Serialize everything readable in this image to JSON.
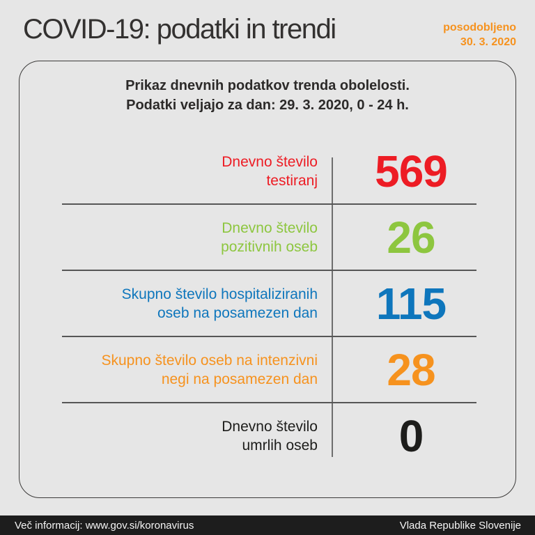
{
  "page": {
    "title": "COVID-19: podatki in trendi",
    "updated_label": "posodobljeno",
    "updated_date": "30. 3. 2020"
  },
  "card": {
    "header_line1": "Prikaz dnevnih podatkov trenda obolelosti.",
    "header_line2": "Podatki veljajo za dan: 29. 3. 2020, 0 - 24 h.",
    "rows": [
      {
        "label_line1": "Dnevno število",
        "label_line2": "testiranj",
        "value": "569",
        "color": "#ed1c24"
      },
      {
        "label_line1": "Dnevno število",
        "label_line2": "pozitivnih oseb",
        "value": "26",
        "color": "#8dc63f"
      },
      {
        "label_line1": "Skupno število hospitaliziranih",
        "label_line2": "oseb na posamezen dan",
        "value": "115",
        "color": "#0e76bc"
      },
      {
        "label_line1": "Skupno število oseb na intenzivni",
        "label_line2": "negi na posamezen dan",
        "value": "28",
        "color": "#f6921e"
      },
      {
        "label_line1": "Dnevno število",
        "label_line2": "umrlih oseb",
        "value": "0",
        "color": "#1d1d1b"
      }
    ]
  },
  "footer": {
    "left": "Več informacij: www.gov.si/koronavirus",
    "right": "Vlada Republike Slovenije"
  },
  "colors": {
    "background": "#e6e6e6",
    "title": "#333130",
    "accent_orange": "#f6921e",
    "card_border": "#3c3b3a",
    "divider_horizontal": "#565656",
    "divider_vertical": "#6e6e6e",
    "footer_background": "#1d1d1d",
    "footer_text": "#f5f5f5"
  }
}
